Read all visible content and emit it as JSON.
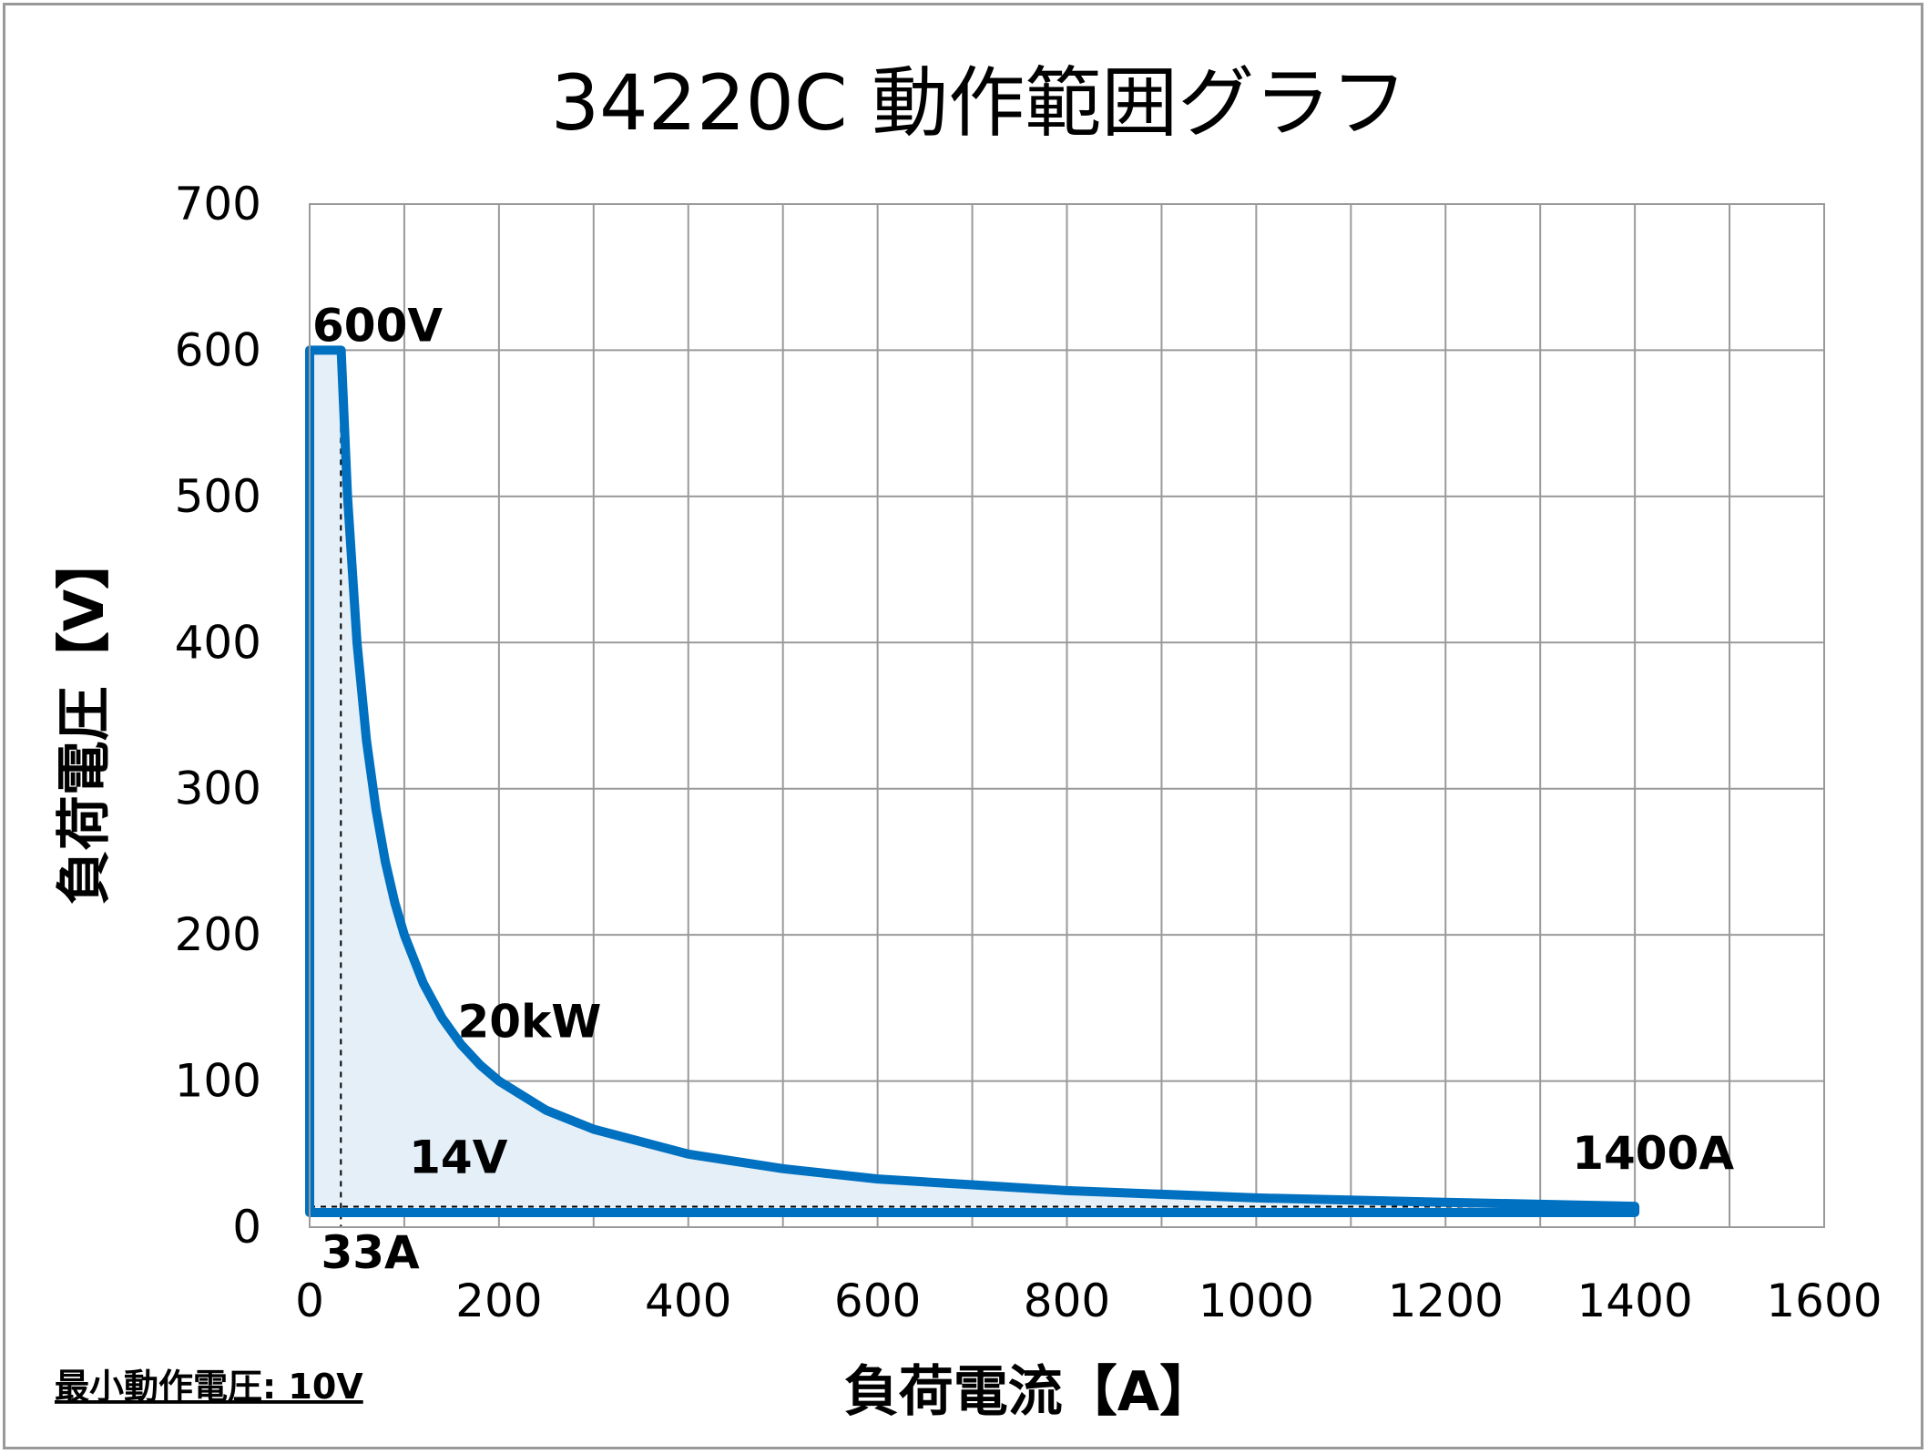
{
  "chart_data": {
    "type": "area",
    "title": "34220C  動作範囲グラフ",
    "xlabel": "負荷電流【A】",
    "ylabel": "負荷電圧【V】",
    "xlim": [
      0,
      1600
    ],
    "ylim": [
      0,
      700
    ],
    "x_ticks": [
      "0",
      "200",
      "400",
      "600",
      "800",
      "1000",
      "1200",
      "1400",
      "1600"
    ],
    "y_ticks": [
      "0",
      "100",
      "200",
      "300",
      "400",
      "500",
      "600",
      "700"
    ],
    "grid": true,
    "legend": "none",
    "series": [
      {
        "color": "#0070C0",
        "fill": "#E4EFF8",
        "points": [
          [
            0,
            600
          ],
          [
            33.3,
            600
          ],
          [
            40,
            500
          ],
          [
            50,
            400
          ],
          [
            60,
            333
          ],
          [
            70,
            286
          ],
          [
            80,
            250
          ],
          [
            90,
            222
          ],
          [
            100,
            200
          ],
          [
            120,
            167
          ],
          [
            140,
            143
          ],
          [
            160,
            125
          ],
          [
            180,
            111
          ],
          [
            200,
            100
          ],
          [
            250,
            80
          ],
          [
            300,
            67
          ],
          [
            400,
            50
          ],
          [
            500,
            40
          ],
          [
            600,
            33
          ],
          [
            700,
            29
          ],
          [
            800,
            25
          ],
          [
            1000,
            20
          ],
          [
            1200,
            17
          ],
          [
            1400,
            14.3
          ],
          [
            1400,
            10
          ],
          [
            0,
            10
          ]
        ]
      }
    ],
    "reference_lines": [
      {
        "axis": "x",
        "value": 33
      },
      {
        "axis": "y",
        "value": 14
      }
    ],
    "annotations": [
      "600V",
      "20kW",
      "14V",
      "33A",
      "1400A"
    ]
  },
  "footnote": "最小動作電圧: 10V"
}
